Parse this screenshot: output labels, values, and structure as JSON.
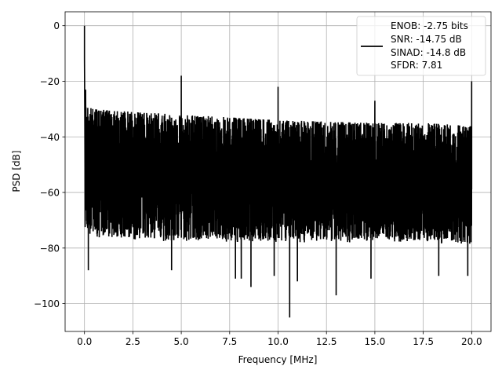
{
  "chart_data": {
    "type": "line",
    "title": "",
    "xlabel": "Frequency [MHz]",
    "ylabel": "PSD [dB]",
    "xlim": [
      -1.0,
      21.0
    ],
    "ylim": [
      -110,
      5
    ],
    "xticks": [
      0.0,
      2.5,
      5.0,
      7.5,
      10.0,
      12.5,
      15.0,
      17.5,
      20.0
    ],
    "xtick_labels": [
      "0.0",
      "2.5",
      "5.0",
      "7.5",
      "10.0",
      "12.5",
      "15.0",
      "17.5",
      "20.0"
    ],
    "yticks": [
      0,
      -20,
      -40,
      -60,
      -80,
      -100
    ],
    "ytick_labels": [
      "0",
      "−20",
      "−40",
      "−60",
      "−80",
      "−100"
    ],
    "grid": true,
    "legend": {
      "position": "top-right",
      "lines": [
        "ENOB: -2.75 bits",
        "SNR: -14.75 dB",
        "SINAD: -14.8 dB",
        "SFDR: 7.81"
      ]
    },
    "series": [
      {
        "color": "#000000",
        "noise_floor": {
          "x": [
            0.0,
            0.5,
            2.5,
            5.0,
            7.5,
            10.0,
            12.5,
            15.0,
            17.5,
            20.0
          ],
          "upper": [
            -29,
            -30,
            -31,
            -32,
            -33,
            -34,
            -34.5,
            -35,
            -35,
            -36
          ],
          "lower": [
            -74,
            -75,
            -76,
            -77,
            -77,
            -77,
            -77,
            -77,
            -77,
            -78
          ]
        },
        "spikes": [
          {
            "x": 0.0,
            "y": 0
          },
          {
            "x": 0.06,
            "y": -23
          },
          {
            "x": 5.0,
            "y": -18
          },
          {
            "x": 10.0,
            "y": -22
          },
          {
            "x": 15.0,
            "y": -27
          },
          {
            "x": 20.0,
            "y": -20
          }
        ],
        "dips": [
          {
            "x": 0.2,
            "y": -88
          },
          {
            "x": 4.5,
            "y": -88
          },
          {
            "x": 7.8,
            "y": -91
          },
          {
            "x": 8.1,
            "y": -91
          },
          {
            "x": 8.6,
            "y": -94
          },
          {
            "x": 9.8,
            "y": -90
          },
          {
            "x": 10.6,
            "y": -105
          },
          {
            "x": 11.0,
            "y": -92
          },
          {
            "x": 13.0,
            "y": -97
          },
          {
            "x": 14.8,
            "y": -91
          },
          {
            "x": 18.3,
            "y": -90
          },
          {
            "x": 19.8,
            "y": -90
          }
        ]
      }
    ]
  }
}
